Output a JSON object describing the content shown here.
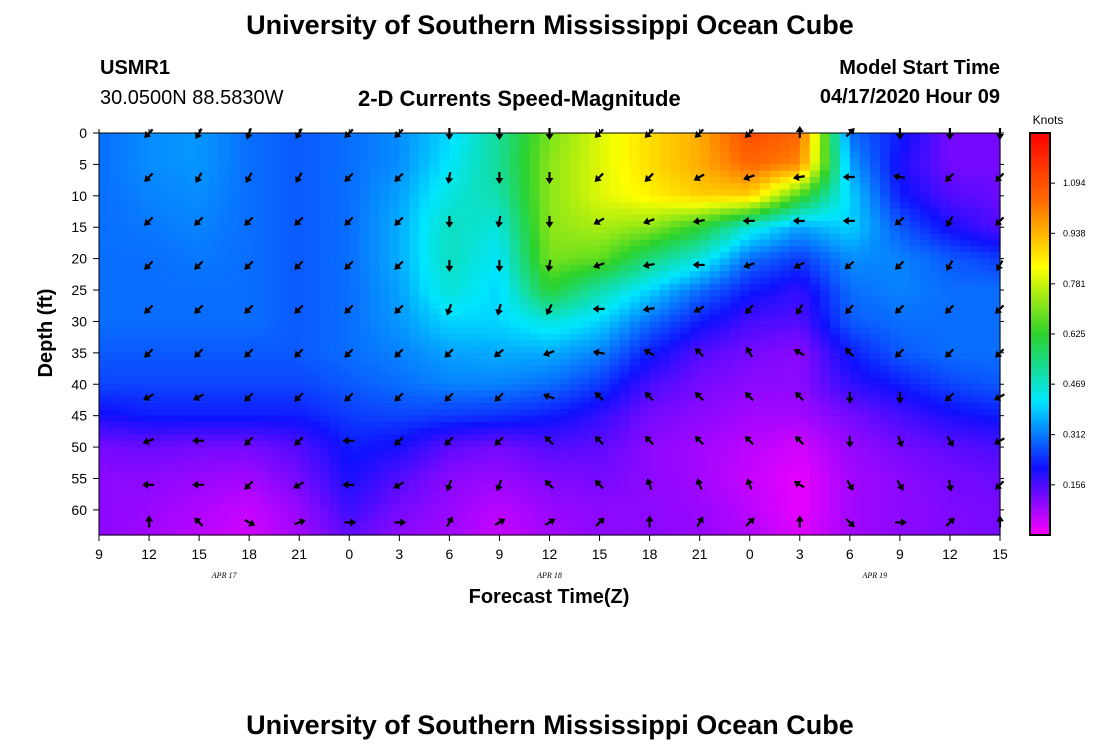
{
  "header": {
    "title": "University of Southern Mississippi Ocean Cube",
    "station_id": "USMR1",
    "coordinates": "30.0500N 88.5830W",
    "subtitle": "2-D Currents Speed-Magnitude",
    "model_start_label": "Model Start Time",
    "model_start_time": "04/17/2020 Hour 09"
  },
  "footer": {
    "title": "University of Southern Mississippi Ocean Cube"
  },
  "colors": {
    "background": "#ffffff",
    "arrow": "#000000",
    "colorscale": [
      "#ff00ff",
      "#1010ff",
      "#00e6ff",
      "#2cd22c",
      "#ffff00",
      "#ff6a00",
      "#ff0000"
    ]
  },
  "chart_data": {
    "type": "heatmap",
    "title": "2-D Currents Speed-Magnitude",
    "xlabel": "Forecast Time(Z)",
    "ylabel": "Depth (ft)",
    "x_ticks": [
      "9",
      "12",
      "15",
      "18",
      "21",
      "0",
      "3",
      "6",
      "9",
      "12",
      "15",
      "18",
      "21",
      "0",
      "3",
      "6",
      "9",
      "12",
      "15"
    ],
    "date_labels": [
      {
        "label": "APR 17",
        "hour_offset": 7.5
      },
      {
        "label": "APR 18",
        "hour_offset": 27
      },
      {
        "label": "APR 19",
        "hour_offset": 46.5
      }
    ],
    "x_range_hours": [
      0,
      54
    ],
    "y_ticks": [
      0,
      5,
      10,
      15,
      20,
      25,
      30,
      35,
      40,
      45,
      50,
      55,
      60
    ],
    "y_range_ft": [
      0,
      64
    ],
    "y_inverted": true,
    "colorbar": {
      "title": "Knots",
      "ticks": [
        "1.094",
        "0.938",
        "0.781",
        "0.625",
        "0.469",
        "0.312",
        "0.156"
      ],
      "tick_values": [
        1.094,
        0.938,
        0.781,
        0.625,
        0.469,
        0.312,
        0.156
      ],
      "range": [
        0,
        1.25
      ]
    },
    "speed_profile_note": "speed in knots by depth; rows = depth samples, columns = forecast hour offsets",
    "depths": [
      0,
      5,
      10,
      15,
      20,
      25,
      30,
      35,
      40,
      45,
      50,
      55,
      60,
      64
    ],
    "hours": [
      0,
      3,
      6,
      9,
      12,
      15,
      18,
      21,
      24,
      27,
      30,
      33,
      36,
      39,
      42,
      45,
      48,
      51,
      54
    ],
    "speed": [
      [
        0.3,
        0.33,
        0.34,
        0.3,
        0.28,
        0.3,
        0.33,
        0.4,
        0.52,
        0.7,
        0.8,
        0.88,
        0.95,
        1.1,
        1.05,
        0.3,
        0.22,
        0.12,
        0.12
      ],
      [
        0.3,
        0.33,
        0.34,
        0.3,
        0.28,
        0.3,
        0.33,
        0.42,
        0.52,
        0.72,
        0.8,
        0.88,
        0.95,
        1.05,
        1.0,
        0.35,
        0.2,
        0.12,
        0.12
      ],
      [
        0.3,
        0.32,
        0.33,
        0.3,
        0.28,
        0.3,
        0.35,
        0.45,
        0.5,
        0.72,
        0.8,
        0.85,
        0.9,
        0.9,
        0.65,
        0.4,
        0.22,
        0.15,
        0.13
      ],
      [
        0.3,
        0.31,
        0.32,
        0.3,
        0.28,
        0.3,
        0.36,
        0.48,
        0.45,
        0.72,
        0.75,
        0.72,
        0.62,
        0.45,
        0.35,
        0.4,
        0.28,
        0.2,
        0.15
      ],
      [
        0.3,
        0.3,
        0.31,
        0.3,
        0.28,
        0.3,
        0.36,
        0.48,
        0.42,
        0.7,
        0.68,
        0.55,
        0.45,
        0.3,
        0.25,
        0.33,
        0.32,
        0.28,
        0.25
      ],
      [
        0.3,
        0.3,
        0.3,
        0.3,
        0.28,
        0.3,
        0.35,
        0.46,
        0.4,
        0.62,
        0.5,
        0.4,
        0.3,
        0.22,
        0.18,
        0.3,
        0.32,
        0.3,
        0.3
      ],
      [
        0.3,
        0.3,
        0.3,
        0.3,
        0.28,
        0.3,
        0.34,
        0.4,
        0.4,
        0.45,
        0.4,
        0.3,
        0.22,
        0.16,
        0.15,
        0.28,
        0.3,
        0.3,
        0.3
      ],
      [
        0.28,
        0.28,
        0.28,
        0.28,
        0.28,
        0.3,
        0.32,
        0.35,
        0.36,
        0.36,
        0.32,
        0.22,
        0.15,
        0.12,
        0.1,
        0.22,
        0.28,
        0.3,
        0.3
      ],
      [
        0.26,
        0.26,
        0.26,
        0.26,
        0.26,
        0.28,
        0.3,
        0.32,
        0.32,
        0.3,
        0.25,
        0.16,
        0.12,
        0.1,
        0.1,
        0.18,
        0.22,
        0.26,
        0.28
      ],
      [
        0.2,
        0.22,
        0.22,
        0.22,
        0.22,
        0.25,
        0.26,
        0.25,
        0.24,
        0.22,
        0.18,
        0.12,
        0.1,
        0.08,
        0.08,
        0.12,
        0.16,
        0.2,
        0.22
      ],
      [
        0.12,
        0.13,
        0.12,
        0.12,
        0.15,
        0.22,
        0.2,
        0.14,
        0.12,
        0.15,
        0.14,
        0.1,
        0.08,
        0.06,
        0.04,
        0.09,
        0.12,
        0.14,
        0.16
      ],
      [
        0.1,
        0.1,
        0.09,
        0.08,
        0.12,
        0.2,
        0.15,
        0.1,
        0.09,
        0.11,
        0.12,
        0.1,
        0.08,
        0.05,
        0.02,
        0.08,
        0.1,
        0.12,
        0.13
      ],
      [
        0.1,
        0.09,
        0.07,
        0.05,
        0.09,
        0.17,
        0.12,
        0.09,
        0.06,
        0.09,
        0.1,
        0.1,
        0.09,
        0.06,
        0.02,
        0.08,
        0.1,
        0.11,
        0.12
      ],
      [
        0.1,
        0.08,
        0.06,
        0.04,
        0.08,
        0.14,
        0.1,
        0.08,
        0.05,
        0.08,
        0.1,
        0.1,
        0.09,
        0.07,
        0.03,
        0.08,
        0.1,
        0.11,
        0.12
      ]
    ],
    "arrow_depths": [
      0,
      7,
      14,
      21,
      28,
      35,
      42,
      49,
      56,
      62
    ],
    "arrow_hours": [
      3,
      6,
      9,
      12,
      15,
      18,
      21,
      24,
      27,
      30,
      33,
      36,
      39,
      42,
      45,
      48,
      51,
      54
    ],
    "arrow_directions_deg": [
      [
        225,
        240,
        250,
        240,
        225,
        225,
        270,
        270,
        270,
        225,
        225,
        225,
        225,
        90,
        45,
        270,
        270,
        270
      ],
      [
        225,
        240,
        240,
        240,
        225,
        225,
        260,
        270,
        270,
        225,
        225,
        210,
        200,
        190,
        180,
        170,
        225,
        225
      ],
      [
        225,
        225,
        225,
        225,
        225,
        225,
        270,
        260,
        270,
        210,
        200,
        190,
        180,
        180,
        180,
        220,
        240,
        225
      ],
      [
        225,
        225,
        225,
        225,
        225,
        225,
        270,
        270,
        260,
        200,
        190,
        180,
        200,
        210,
        220,
        225,
        240,
        240
      ],
      [
        225,
        225,
        225,
        225,
        225,
        225,
        250,
        255,
        245,
        180,
        190,
        210,
        230,
        240,
        230,
        225,
        225,
        225
      ],
      [
        225,
        225,
        225,
        225,
        225,
        225,
        225,
        220,
        200,
        170,
        150,
        135,
        120,
        150,
        135,
        225,
        225,
        225
      ],
      [
        210,
        210,
        225,
        225,
        225,
        225,
        225,
        225,
        160,
        135,
        135,
        135,
        135,
        135,
        270,
        270,
        225,
        210
      ],
      [
        200,
        180,
        225,
        225,
        180,
        225,
        225,
        225,
        135,
        135,
        135,
        135,
        135,
        135,
        270,
        290,
        300,
        210
      ],
      [
        180,
        180,
        225,
        210,
        180,
        210,
        250,
        250,
        135,
        135,
        110,
        110,
        110,
        150,
        300,
        300,
        280,
        225
      ],
      [
        90,
        135,
        330,
        20,
        0,
        0,
        60,
        30,
        30,
        45,
        90,
        60,
        45,
        90,
        315,
        0,
        45,
        90
      ]
    ]
  }
}
